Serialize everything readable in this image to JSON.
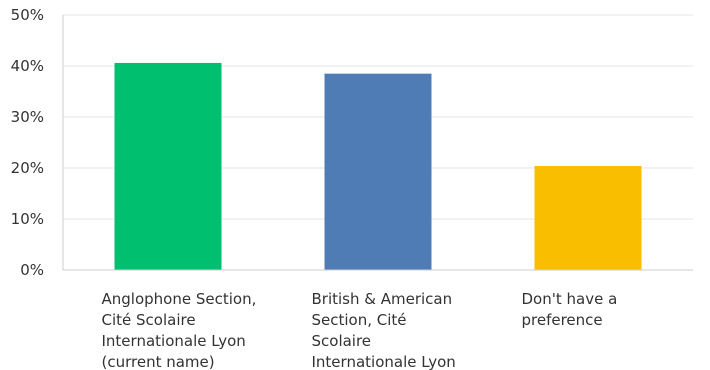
{
  "chart_data": {
    "type": "bar",
    "title": "",
    "xlabel": "",
    "ylabel": "",
    "ylim": [
      0,
      50
    ],
    "yticks": [
      {
        "value": 0,
        "label": "0%"
      },
      {
        "value": 10,
        "label": "10%"
      },
      {
        "value": 20,
        "label": "20%"
      },
      {
        "value": 30,
        "label": "30%"
      },
      {
        "value": 40,
        "label": "40%"
      },
      {
        "value": 50,
        "label": "50%"
      }
    ],
    "grid": true,
    "categories": [
      [
        "Anglophone Section,",
        "Cité Scolaire",
        "Internationale Lyon",
        "(current name)"
      ],
      [
        "British & American",
        "Section, Cité",
        "Scolaire",
        "Internationale Lyon"
      ],
      [
        "Don't have a",
        "preference"
      ]
    ],
    "values": [
      40.6,
      38.5,
      20.4
    ],
    "colors": [
      "#00bf6f",
      "#507cb6",
      "#f9be00"
    ]
  }
}
